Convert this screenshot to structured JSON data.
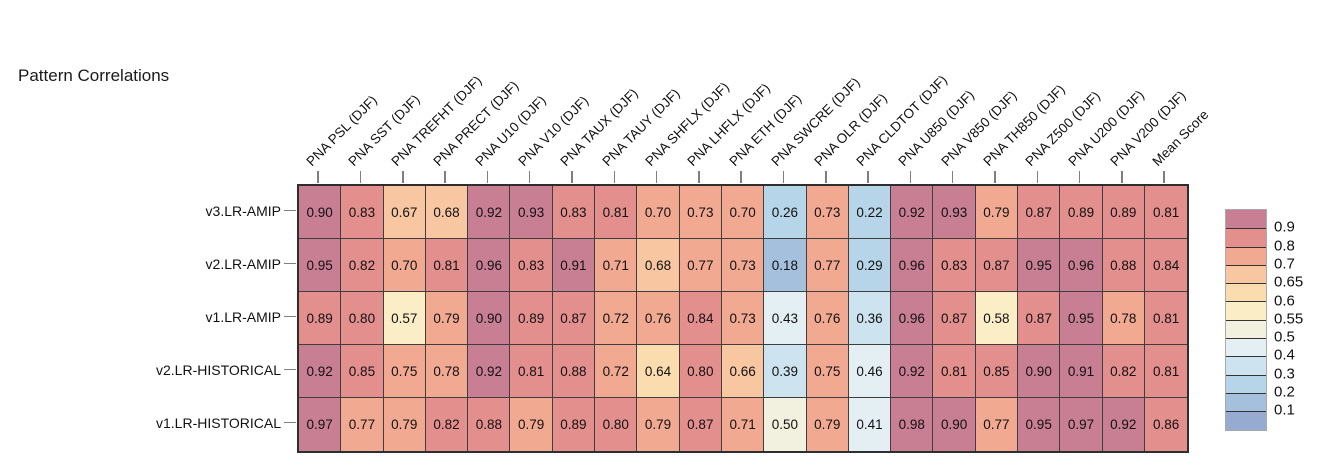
{
  "title": "Pattern Correlations",
  "chart_data": {
    "type": "heatmap",
    "title": "Pattern Correlations",
    "columns": [
      "PNA PSL (DJF)",
      "PNA SST (DJF)",
      "PNA TREFHT (DJF)",
      "PNA PRECT (DJF)",
      "PNA U10 (DJF)",
      "PNA V10 (DJF)",
      "PNA TAUX (DJF)",
      "PNA TAUY (DJF)",
      "PNA SHFLX (DJF)",
      "PNA LHFLX (DJF)",
      "PNA ETH (DJF)",
      "PNA SWCRE (DJF)",
      "PNA OLR (DJF)",
      "PNA CLDTOT (DJF)",
      "PNA U850 (DJF)",
      "PNA V850 (DJF)",
      "PNA TH850 (DJF)",
      "PNA Z500 (DJF)",
      "PNA U200 (DJF)",
      "PNA V200 (DJF)",
      "Mean Score"
    ],
    "rows": [
      "v3.LR-AMIP",
      "v2.LR-AMIP",
      "v1.LR-AMIP",
      "v2.LR-HISTORICAL",
      "v1.LR-HISTORICAL"
    ],
    "values": [
      [
        "0.90",
        "0.83",
        "0.67",
        "0.68",
        "0.92",
        "0.93",
        "0.83",
        "0.81",
        "0.70",
        "0.73",
        "0.70",
        "0.26",
        "0.73",
        "0.22",
        "0.92",
        "0.93",
        "0.79",
        "0.87",
        "0.89",
        "0.89",
        "0.81"
      ],
      [
        "0.95",
        "0.82",
        "0.70",
        "0.81",
        "0.96",
        "0.83",
        "0.91",
        "0.71",
        "0.68",
        "0.77",
        "0.73",
        "0.18",
        "0.77",
        "0.29",
        "0.96",
        "0.83",
        "0.87",
        "0.95",
        "0.96",
        "0.88",
        "0.84"
      ],
      [
        "0.89",
        "0.80",
        "0.57",
        "0.79",
        "0.90",
        "0.89",
        "0.87",
        "0.72",
        "0.76",
        "0.84",
        "0.73",
        "0.43",
        "0.76",
        "0.36",
        "0.96",
        "0.87",
        "0.58",
        "0.87",
        "0.95",
        "0.78",
        "0.81"
      ],
      [
        "0.92",
        "0.85",
        "0.75",
        "0.78",
        "0.92",
        "0.81",
        "0.88",
        "0.72",
        "0.64",
        "0.80",
        "0.66",
        "0.39",
        "0.75",
        "0.46",
        "0.92",
        "0.81",
        "0.85",
        "0.90",
        "0.91",
        "0.82",
        "0.81"
      ],
      [
        "0.97",
        "0.77",
        "0.79",
        "0.82",
        "0.88",
        "0.79",
        "0.89",
        "0.80",
        "0.79",
        "0.87",
        "0.71",
        "0.50",
        "0.79",
        "0.41",
        "0.98",
        "0.90",
        "0.77",
        "0.95",
        "0.97",
        "0.92",
        "0.86"
      ]
    ],
    "colorbar": {
      "tick_labels": [
        "0.9",
        "0.8",
        "0.7",
        "0.65",
        "0.6",
        "0.55",
        "0.5",
        "0.4",
        "0.3",
        "0.2",
        "0.1"
      ],
      "thresholds_low_to_high": [
        0.1,
        0.2,
        0.3,
        0.4,
        0.5,
        0.55,
        0.6,
        0.65,
        0.7,
        0.8,
        0.9
      ],
      "colors_low_to_high": [
        "#96AAD2",
        "#A4C0DD",
        "#B7D5E9",
        "#CDE3F0",
        "#E4EFF4",
        "#F2F0DF",
        "#FBEEC7",
        "#FADCAE",
        "#F8C6A0",
        "#F2A992",
        "#E38F8E",
        "#C87E93"
      ],
      "legend_position": "right"
    },
    "grid_on": true
  }
}
